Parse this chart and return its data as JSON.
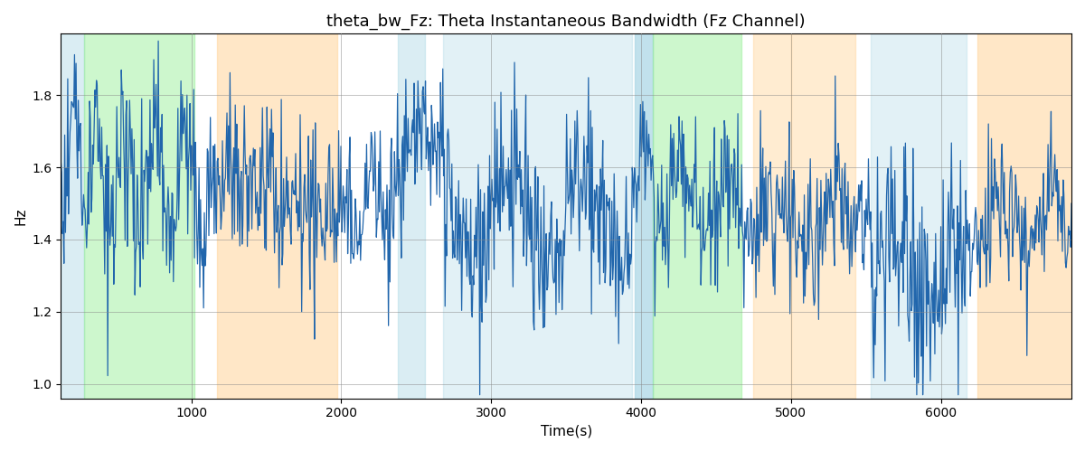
{
  "title": "theta_bw_Fz: Theta Instantaneous Bandwidth (Fz Channel)",
  "xlabel": "Time(s)",
  "ylabel": "Hz",
  "xlim": [
    130,
    6870
  ],
  "ylim": [
    0.96,
    1.97
  ],
  "yticks": [
    1.0,
    1.2,
    1.4,
    1.6,
    1.8
  ],
  "xticks": [
    1000,
    2000,
    3000,
    4000,
    5000,
    6000
  ],
  "bg_bands": [
    {
      "xmin": 130,
      "xmax": 285,
      "color": "#add8e6",
      "alpha": 0.45
    },
    {
      "xmin": 285,
      "xmax": 1020,
      "color": "#90ee90",
      "alpha": 0.45
    },
    {
      "xmin": 1170,
      "xmax": 1970,
      "color": "#ffd59a",
      "alpha": 0.55
    },
    {
      "xmin": 2380,
      "xmax": 2560,
      "color": "#add8e6",
      "alpha": 0.45
    },
    {
      "xmin": 2680,
      "xmax": 3940,
      "color": "#add8e6",
      "alpha": 0.35
    },
    {
      "xmin": 3960,
      "xmax": 4080,
      "color": "#add8e6",
      "alpha": 0.75
    },
    {
      "xmin": 4080,
      "xmax": 4670,
      "color": "#90ee90",
      "alpha": 0.45
    },
    {
      "xmin": 4750,
      "xmax": 5000,
      "color": "#ffd59a",
      "alpha": 0.45
    },
    {
      "xmin": 5000,
      "xmax": 5430,
      "color": "#ffd59a",
      "alpha": 0.45
    },
    {
      "xmin": 5530,
      "xmax": 6170,
      "color": "#add8e6",
      "alpha": 0.35
    },
    {
      "xmin": 6240,
      "xmax": 6870,
      "color": "#ffd59a",
      "alpha": 0.55
    }
  ],
  "line_color": "#2166ac",
  "line_width": 0.9,
  "grid_color": "#888888",
  "grid_alpha": 0.5,
  "figsize": [
    12,
    5
  ],
  "dpi": 100,
  "title_fontsize": 13,
  "axis_label_fontsize": 11,
  "seed": 42,
  "n_points": 1340
}
